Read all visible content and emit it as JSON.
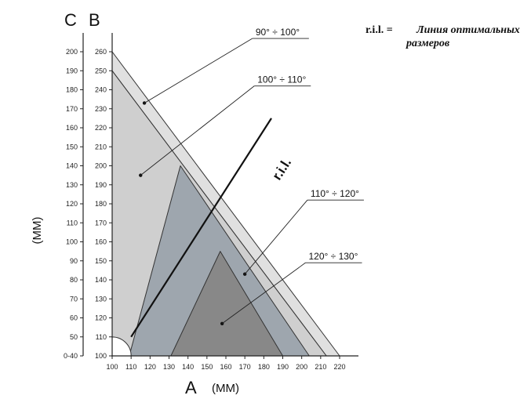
{
  "chart_data": {
    "type": "area",
    "x_axis": {
      "letter": "A",
      "unit": "(MM)",
      "range": [
        100,
        220
      ],
      "ticks": [
        100,
        110,
        120,
        130,
        140,
        150,
        160,
        170,
        180,
        190,
        200,
        210,
        220
      ]
    },
    "y_axis_b": {
      "letter": "B",
      "range": [
        100,
        260
      ],
      "ticks": [
        100,
        110,
        120,
        130,
        140,
        150,
        160,
        170,
        180,
        190,
        200,
        210,
        220,
        230,
        240,
        250,
        260
      ]
    },
    "y_axis_c": {
      "letter": "C",
      "unit": "(MM)",
      "tick_labels": [
        "0-40",
        "50",
        "60",
        "70",
        "80",
        "90",
        "100",
        "110",
        "120",
        "130",
        "140",
        "150",
        "160",
        "170",
        "180",
        "190",
        "200"
      ]
    },
    "regions": [
      {
        "name": "90° ÷ 100°",
        "color": "#e0e0e0",
        "points": [
          [
            100,
            260
          ],
          [
            100,
            250
          ],
          [
            213,
            100
          ],
          [
            220,
            100
          ]
        ]
      },
      {
        "name": "100° ÷ 110°",
        "color": "#cfcfcf",
        "points": [
          [
            100,
            250
          ],
          [
            100,
            100
          ],
          [
            213,
            100
          ]
        ]
      },
      {
        "name": "110° ÷ 120°",
        "color": "#9ea6ae",
        "points": [
          [
            136,
            200
          ],
          [
            109,
            100
          ],
          [
            204,
            100
          ]
        ]
      },
      {
        "name": "120° ÷ 130°",
        "color": "#888888",
        "points": [
          [
            157,
            155
          ],
          [
            131,
            100
          ],
          [
            190,
            100
          ]
        ]
      }
    ],
    "callouts": [
      {
        "region": "90° ÷ 100°",
        "point": [
          117,
          233
        ],
        "label_anchor": [
          174,
          267
        ]
      },
      {
        "region": "100° ÷ 110°",
        "point": [
          115,
          195
        ],
        "label_anchor": [
          175,
          242
        ]
      },
      {
        "region": "110° ÷ 120°",
        "point": [
          170,
          143
        ],
        "label_anchor": [
          203,
          182
        ]
      },
      {
        "region": "120° ÷ 130°",
        "point": [
          158,
          117
        ],
        "label_anchor": [
          202,
          149
        ]
      }
    ],
    "ril_line": {
      "label": "r.i.l.",
      "from": [
        110,
        110
      ],
      "to": [
        184,
        225
      ]
    },
    "origin_quarter_circle": {
      "center": [
        100,
        100
      ],
      "radius": 10
    }
  },
  "legend": {
    "key": "r.i.l. =",
    "line1": "Линия оптимальных",
    "line2": "размеров"
  }
}
